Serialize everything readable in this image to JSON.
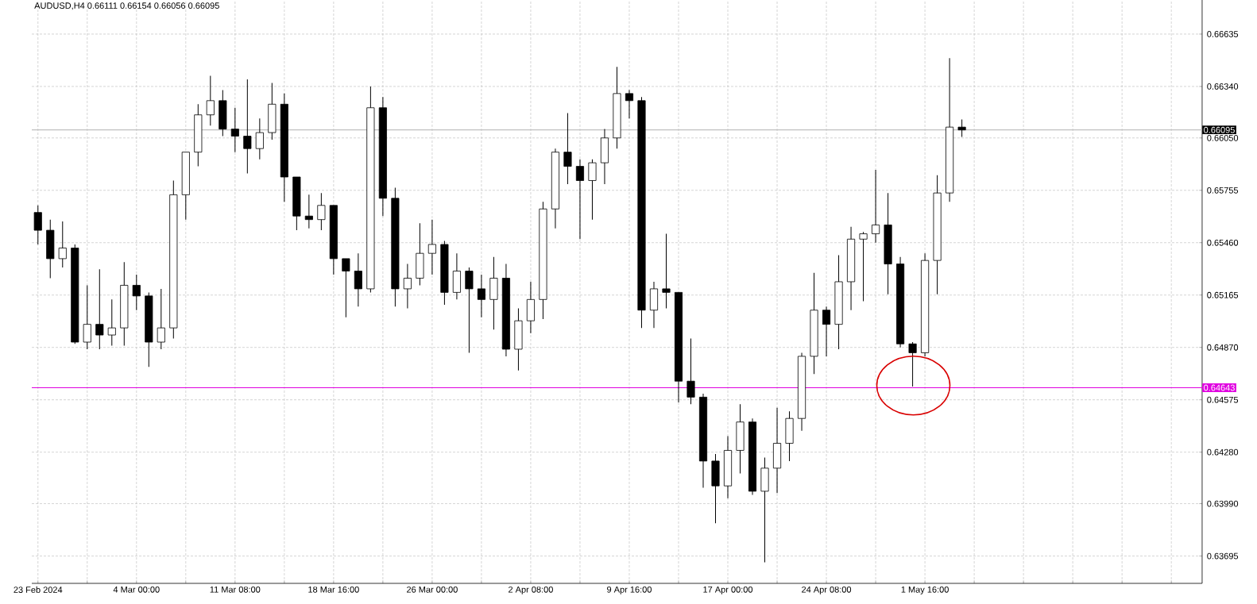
{
  "chart_data": {
    "type": "candlestick",
    "title": "AUDUSD,H4  0.66111 0.66154 0.66056 0.66095",
    "categories": [
      "23 Feb 2024",
      null,
      null,
      null,
      null,
      null,
      null,
      null,
      "4 Mar 00:00",
      null,
      null,
      null,
      null,
      null,
      null,
      null,
      "11 Mar 08:00",
      null,
      null,
      null,
      null,
      null,
      null,
      null,
      "18 Mar 16:00",
      null,
      null,
      null,
      null,
      null,
      null,
      null,
      "26 Mar 00:00",
      null,
      null,
      null,
      null,
      null,
      null,
      null,
      "2 Apr 08:00",
      null,
      null,
      null,
      null,
      null,
      null,
      null,
      "9 Apr 16:00",
      null,
      null,
      null,
      null,
      null,
      null,
      null,
      "17 Apr 00:00",
      null,
      null,
      null,
      null,
      null,
      null,
      null,
      "24 Apr 08:00",
      null,
      null,
      null,
      null,
      null,
      null,
      null,
      "1 May 16:00",
      null,
      null,
      null,
      null,
      null,
      null,
      null,
      null,
      null,
      null,
      null,
      null,
      null,
      null,
      null,
      null,
      null,
      null,
      null,
      null,
      null,
      null
    ],
    "ohlc": [
      [
        0.6563,
        0.6567,
        0.6545,
        0.6553
      ],
      [
        0.6553,
        0.6559,
        0.6526,
        0.6537
      ],
      [
        0.6537,
        0.6558,
        0.6532,
        0.6543
      ],
      [
        0.6543,
        0.6545,
        0.6489,
        0.649
      ],
      [
        0.649,
        0.6522,
        0.6486,
        0.65
      ],
      [
        0.65,
        0.6531,
        0.6486,
        0.6494
      ],
      [
        0.6494,
        0.6514,
        0.6488,
        0.6498
      ],
      [
        0.6498,
        0.6535,
        0.6488,
        0.6522
      ],
      [
        0.6522,
        0.6528,
        0.6508,
        0.6516
      ],
      [
        0.6516,
        0.6518,
        0.6476,
        0.649
      ],
      [
        0.649,
        0.652,
        0.6486,
        0.6498
      ],
      [
        0.6498,
        0.6581,
        0.6492,
        0.6573
      ],
      [
        0.6573,
        0.6597,
        0.6559,
        0.6597
      ],
      [
        0.6597,
        0.6624,
        0.6589,
        0.6618
      ],
      [
        0.6618,
        0.664,
        0.6612,
        0.6626
      ],
      [
        0.6626,
        0.6632,
        0.6606,
        0.661
      ],
      [
        0.661,
        0.6622,
        0.6597,
        0.6606
      ],
      [
        0.6606,
        0.6638,
        0.6585,
        0.6599
      ],
      [
        0.6599,
        0.6616,
        0.6593,
        0.6608
      ],
      [
        0.6608,
        0.6636,
        0.6604,
        0.6624
      ],
      [
        0.6624,
        0.663,
        0.6569,
        0.6583
      ],
      [
        0.6583,
        0.6583,
        0.6553,
        0.6561
      ],
      [
        0.6561,
        0.6573,
        0.6554,
        0.6559
      ],
      [
        0.6559,
        0.6574,
        0.6553,
        0.6567
      ],
      [
        0.6567,
        0.6567,
        0.6528,
        0.6537
      ],
      [
        0.6537,
        0.6537,
        0.6504,
        0.653
      ],
      [
        0.653,
        0.654,
        0.651,
        0.652
      ],
      [
        0.652,
        0.6634,
        0.6518,
        0.6622
      ],
      [
        0.6622,
        0.6628,
        0.6561,
        0.6571
      ],
      [
        0.6571,
        0.6577,
        0.651,
        0.652
      ],
      [
        0.652,
        0.6534,
        0.6509,
        0.6526
      ],
      [
        0.6526,
        0.6557,
        0.6522,
        0.654
      ],
      [
        0.654,
        0.6559,
        0.6528,
        0.6545
      ],
      [
        0.6545,
        0.6547,
        0.6511,
        0.6518
      ],
      [
        0.6518,
        0.654,
        0.6514,
        0.653
      ],
      [
        0.653,
        0.6532,
        0.6484,
        0.652
      ],
      [
        0.652,
        0.6528,
        0.6504,
        0.6514
      ],
      [
        0.6514,
        0.6538,
        0.6497,
        0.6526
      ],
      [
        0.6526,
        0.6534,
        0.6482,
        0.6486
      ],
      [
        0.6486,
        0.6509,
        0.6474,
        0.6502
      ],
      [
        0.6502,
        0.6524,
        0.6495,
        0.6514
      ],
      [
        0.6514,
        0.6569,
        0.6503,
        0.6565
      ],
      [
        0.6565,
        0.6599,
        0.6554,
        0.6597
      ],
      [
        0.6597,
        0.6619,
        0.6579,
        0.6589
      ],
      [
        0.6589,
        0.6593,
        0.6548,
        0.6581
      ],
      [
        0.6581,
        0.6593,
        0.6559,
        0.6591
      ],
      [
        0.6591,
        0.661,
        0.6579,
        0.6605
      ],
      [
        0.6605,
        0.6645,
        0.6599,
        0.663
      ],
      [
        0.663,
        0.6632,
        0.6616,
        0.6626
      ],
      [
        0.6626,
        0.6628,
        0.6498,
        0.6508
      ],
      [
        0.6508,
        0.6524,
        0.6498,
        0.652
      ],
      [
        0.652,
        0.6551,
        0.6509,
        0.6518
      ],
      [
        0.6518,
        0.6518,
        0.6456,
        0.6468
      ],
      [
        0.6468,
        0.6492,
        0.6455,
        0.6459
      ],
      [
        0.6459,
        0.6461,
        0.6408,
        0.6423
      ],
      [
        0.6423,
        0.6427,
        0.6388,
        0.6409
      ],
      [
        0.6409,
        0.6437,
        0.6402,
        0.6429
      ],
      [
        0.6429,
        0.6455,
        0.6416,
        0.6445
      ],
      [
        0.6445,
        0.6447,
        0.6404,
        0.6406
      ],
      [
        0.6406,
        0.6425,
        0.6366,
        0.6419
      ],
      [
        0.6419,
        0.6453,
        0.6405,
        0.6433
      ],
      [
        0.6433,
        0.6451,
        0.6423,
        0.6447
      ],
      [
        0.6447,
        0.6484,
        0.644,
        0.6482
      ],
      [
        0.6482,
        0.6529,
        0.6472,
        0.6508
      ],
      [
        0.6508,
        0.651,
        0.6482,
        0.65
      ],
      [
        0.65,
        0.6539,
        0.6486,
        0.6524
      ],
      [
        0.6524,
        0.6555,
        0.6508,
        0.6548
      ],
      [
        0.6548,
        0.6552,
        0.6513,
        0.6551
      ],
      [
        0.6551,
        0.6587,
        0.6546,
        0.6556
      ],
      [
        0.6556,
        0.6574,
        0.6517,
        0.6534
      ],
      [
        0.6534,
        0.6538,
        0.6487,
        0.6489
      ],
      [
        0.6489,
        0.649,
        0.6465,
        0.6484
      ],
      [
        0.6484,
        0.654,
        0.6482,
        0.6536
      ],
      [
        0.6536,
        0.6584,
        0.6517,
        0.6574
      ],
      [
        0.6574,
        0.665,
        0.6569,
        0.66111
      ],
      [
        0.66111,
        0.66154,
        0.66056,
        0.66095
      ],
      null,
      null,
      null,
      null,
      null,
      null,
      null,
      null,
      null,
      null,
      null,
      null,
      null,
      null,
      null,
      null,
      null,
      null,
      null
    ],
    "ylim": [
      0.63541,
      0.66827
    ],
    "yticks": [
      {
        "value": 0.66635,
        "label": "0.66635"
      },
      {
        "value": 0.6634,
        "label": "0.66340"
      },
      {
        "value": 0.6605,
        "label": "0.66050"
      },
      {
        "value": 0.65755,
        "label": "0.65755"
      },
      {
        "value": 0.6546,
        "label": "0.65460"
      },
      {
        "value": 0.65165,
        "label": "0.65165"
      },
      {
        "value": 0.6487,
        "label": "0.64870"
      },
      {
        "value": 0.64575,
        "label": "0.64575"
      },
      {
        "value": 0.6428,
        "label": "0.64280"
      },
      {
        "value": 0.6399,
        "label": "0.63990"
      },
      {
        "value": 0.63695,
        "label": "0.63695"
      }
    ],
    "grid": true,
    "ref_lines": [
      {
        "axis": "y",
        "value": 0.66095,
        "label": "0.66095",
        "color": "#c0c0c0"
      },
      {
        "axis": "y",
        "value": 0.64643,
        "label": "0.64643",
        "color": "#e000e0"
      }
    ]
  }
}
